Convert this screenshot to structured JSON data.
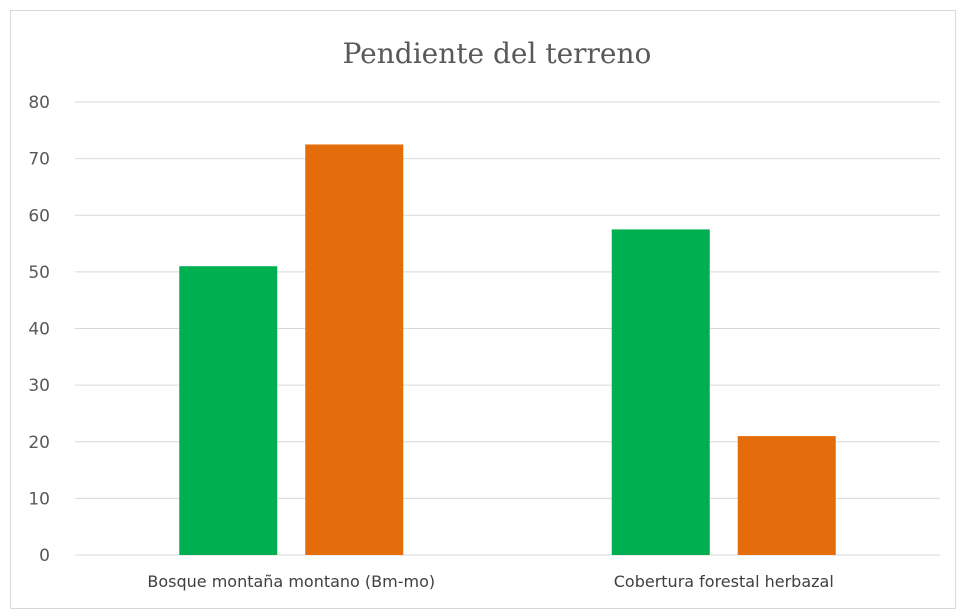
{
  "chart_data": {
    "type": "bar",
    "title": "Pendiente del terreno",
    "xlabel": "",
    "ylabel": "",
    "categories": [
      "Bosque montaña montano (Bm-mo)",
      "Cobertura forestal herbazal"
    ],
    "series": [
      {
        "color": "#00b050",
        "values": [
          51,
          57.5
        ]
      },
      {
        "color": "#e46c0a",
        "values": [
          72.5,
          21
        ]
      }
    ],
    "ylim": [
      0,
      80
    ],
    "yticks": [
      0,
      10,
      20,
      30,
      40,
      50,
      60,
      70,
      80
    ],
    "grid": true,
    "legend": "none"
  }
}
